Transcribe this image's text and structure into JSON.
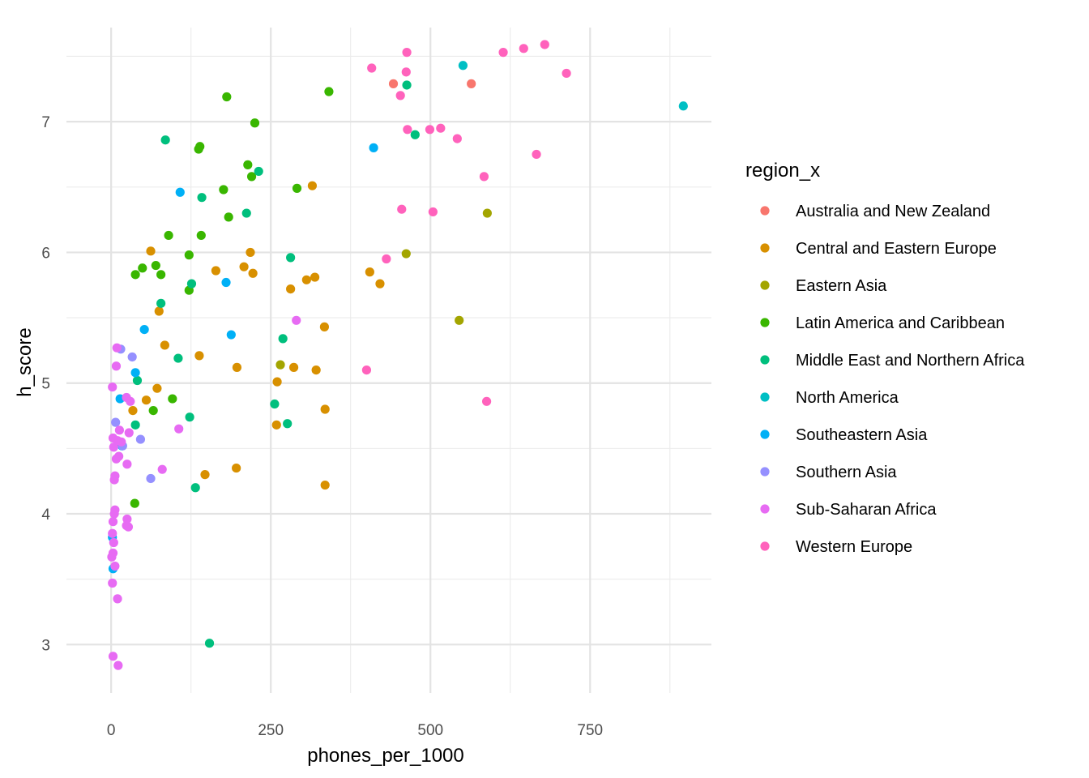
{
  "chart_data": {
    "type": "scatter",
    "xlabel": "phones_per_1000",
    "ylabel": "h_score",
    "xlim": [
      -70,
      940
    ],
    "ylim": [
      2.63,
      7.72
    ],
    "x_ticks": [
      0,
      250,
      500,
      750
    ],
    "x_tick_labels": [
      "0",
      "250",
      "500",
      "750"
    ],
    "y_ticks": [
      3,
      4,
      5,
      6,
      7
    ],
    "y_tick_labels": [
      "3",
      "4",
      "5",
      "6",
      "7"
    ],
    "grid": true,
    "legend": {
      "title": "region_x",
      "position": "right"
    },
    "series": [
      {
        "name": "Australia and New Zealand",
        "color": "#F8766D",
        "points": [
          [
            442,
            7.29
          ],
          [
            564,
            7.29
          ]
        ]
      },
      {
        "name": "Central and Eastern Europe",
        "color": "#D89000",
        "points": [
          [
            62,
            6.01
          ],
          [
            75,
            5.55
          ],
          [
            84,
            5.29
          ],
          [
            72,
            4.96
          ],
          [
            55,
            4.87
          ],
          [
            34,
            4.79
          ],
          [
            164,
            5.86
          ],
          [
            138,
            5.21
          ],
          [
            147,
            4.3
          ],
          [
            197,
            5.12
          ],
          [
            196,
            4.35
          ],
          [
            208,
            5.89
          ],
          [
            218,
            6.0
          ],
          [
            222,
            5.84
          ],
          [
            260,
            5.01
          ],
          [
            259,
            4.68
          ],
          [
            281,
            5.72
          ],
          [
            286,
            5.12
          ],
          [
            306,
            5.79
          ],
          [
            315,
            6.51
          ],
          [
            319,
            5.81
          ],
          [
            321,
            5.1
          ],
          [
            334,
            5.43
          ],
          [
            335,
            4.8
          ],
          [
            335,
            4.22
          ],
          [
            405,
            5.85
          ],
          [
            421,
            5.76
          ]
        ]
      },
      {
        "name": "Eastern Asia",
        "color": "#A3A500",
        "points": [
          [
            265,
            5.14
          ],
          [
            462,
            5.99
          ],
          [
            545,
            5.48
          ],
          [
            589,
            6.3
          ]
        ]
      },
      {
        "name": "Latin America and Caribbean",
        "color": "#39B600",
        "points": [
          [
            38,
            5.83
          ],
          [
            49,
            5.88
          ],
          [
            70,
            5.9
          ],
          [
            78,
            5.83
          ],
          [
            66,
            4.79
          ],
          [
            90,
            6.13
          ],
          [
            96,
            4.88
          ],
          [
            122,
            5.98
          ],
          [
            122,
            5.71
          ],
          [
            137,
            6.79
          ],
          [
            139,
            6.81
          ],
          [
            141,
            6.13
          ],
          [
            176,
            6.48
          ],
          [
            181,
            7.19
          ],
          [
            184,
            6.27
          ],
          [
            214,
            6.67
          ],
          [
            220,
            6.58
          ],
          [
            225,
            6.99
          ],
          [
            291,
            6.49
          ],
          [
            341,
            7.23
          ],
          [
            37,
            4.08
          ]
        ]
      },
      {
        "name": "Middle East and Northern Africa",
        "color": "#00BF7D",
        "points": [
          [
            38,
            4.68
          ],
          [
            41,
            5.02
          ],
          [
            78,
            5.61
          ],
          [
            85,
            6.86
          ],
          [
            105,
            5.19
          ],
          [
            123,
            4.74
          ],
          [
            126,
            5.76
          ],
          [
            132,
            4.2
          ],
          [
            142,
            6.42
          ],
          [
            154,
            3.01
          ],
          [
            212,
            6.3
          ],
          [
            231,
            6.62
          ],
          [
            256,
            4.84
          ],
          [
            269,
            5.34
          ],
          [
            276,
            4.69
          ],
          [
            281,
            5.96
          ],
          [
            463,
            7.28
          ],
          [
            476,
            6.9
          ]
        ]
      },
      {
        "name": "North America",
        "color": "#00BFC4",
        "points": [
          [
            551,
            7.43
          ],
          [
            896,
            7.12
          ]
        ]
      },
      {
        "name": "Southeastern Asia",
        "color": "#00B0F6",
        "points": [
          [
            2,
            3.82
          ],
          [
            3,
            3.58
          ],
          [
            14,
            4.88
          ],
          [
            17,
            4.52
          ],
          [
            38,
            5.08
          ],
          [
            52,
            5.41
          ],
          [
            108,
            6.46
          ],
          [
            180,
            5.77
          ],
          [
            188,
            5.37
          ],
          [
            411,
            6.8
          ]
        ]
      },
      {
        "name": "Southern Asia",
        "color": "#9590FF",
        "points": [
          [
            7,
            4.7
          ],
          [
            15,
            5.26
          ],
          [
            33,
            5.2
          ],
          [
            46,
            4.57
          ],
          [
            62,
            4.27
          ],
          [
            18,
            4.52
          ]
        ]
      },
      {
        "name": "Sub-Saharan Africa",
        "color": "#E76BF3",
        "points": [
          [
            2,
            4.97
          ],
          [
            3,
            4.58
          ],
          [
            4,
            4.51
          ],
          [
            5,
            4.26
          ],
          [
            6,
            4.29
          ],
          [
            8,
            4.42
          ],
          [
            8,
            5.13
          ],
          [
            9,
            5.27
          ],
          [
            10,
            4.56
          ],
          [
            12,
            4.44
          ],
          [
            13,
            4.64
          ],
          [
            16,
            4.55
          ],
          [
            24,
            4.89
          ],
          [
            25,
            4.38
          ],
          [
            28,
            4.62
          ],
          [
            30,
            4.86
          ],
          [
            3,
            3.94
          ],
          [
            4,
            3.78
          ],
          [
            5,
            4.0
          ],
          [
            6,
            4.03
          ],
          [
            2,
            3.85
          ],
          [
            3,
            3.7
          ],
          [
            1,
            3.67
          ],
          [
            6,
            3.6
          ],
          [
            2,
            3.47
          ],
          [
            10,
            3.35
          ],
          [
            25,
            3.96
          ],
          [
            24,
            3.91
          ],
          [
            27,
            3.9
          ],
          [
            80,
            4.34
          ],
          [
            106,
            4.65
          ],
          [
            290,
            5.48
          ],
          [
            3,
            2.91
          ],
          [
            11,
            2.84
          ]
        ]
      },
      {
        "name": "Western Europe",
        "color": "#FF62BC",
        "points": [
          [
            400,
            5.1
          ],
          [
            408,
            7.41
          ],
          [
            431,
            5.95
          ],
          [
            453,
            7.2
          ],
          [
            455,
            6.33
          ],
          [
            462,
            7.38
          ],
          [
            463,
            7.53
          ],
          [
            464,
            6.94
          ],
          [
            499,
            6.94
          ],
          [
            504,
            6.31
          ],
          [
            516,
            6.95
          ],
          [
            542,
            6.87
          ],
          [
            584,
            6.58
          ],
          [
            588,
            4.86
          ],
          [
            614,
            7.53
          ],
          [
            646,
            7.56
          ],
          [
            666,
            6.75
          ],
          [
            679,
            7.59
          ],
          [
            713,
            7.37
          ]
        ]
      }
    ]
  }
}
